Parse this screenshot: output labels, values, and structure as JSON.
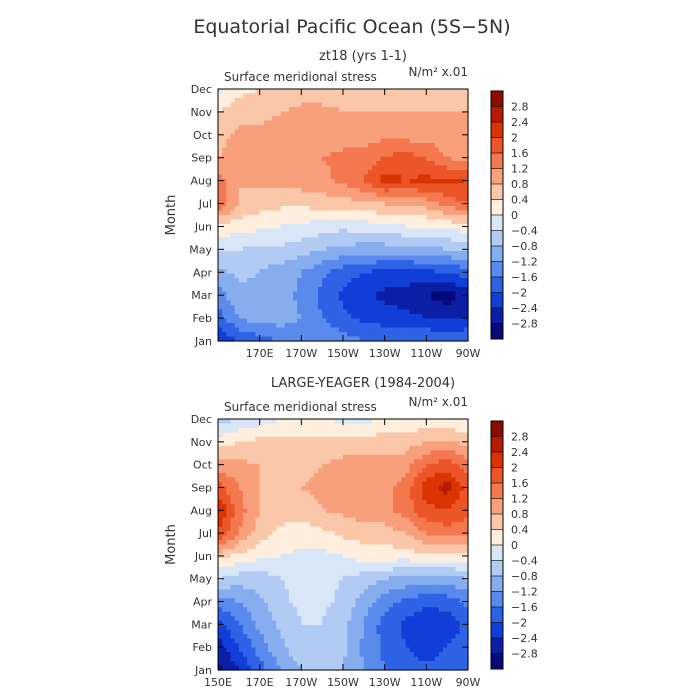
{
  "figure": {
    "title": "Equatorial Pacific Ocean (5S−5N)"
  },
  "colorbar": {
    "labels": [
      "2.8",
      "2.4",
      "2",
      "1.6",
      "1.2",
      "0.8",
      "0.4",
      "0",
      "−0.4",
      "−0.8",
      "−1.2",
      "−1.6",
      "−2",
      "−2.4",
      "−2.8"
    ],
    "colors": [
      "#8c0d00",
      "#b81a00",
      "#da3500",
      "#ec5528",
      "#f4784f",
      "#f8a07c",
      "#fbc7a9",
      "#fdeedd",
      "#d8e6f7",
      "#b1cbf2",
      "#86aeef",
      "#5a8bec",
      "#2f63e6",
      "#123ed8",
      "#0a1ea6",
      "#050a78"
    ]
  },
  "chart_data": [
    {
      "type": "heatmap",
      "title": "zt18 (yrs 1-1)",
      "subtitle": "Surface meridional stress",
      "units": "N/m² x.01",
      "xlabel": "",
      "ylabel": "Month",
      "x_ticks": [
        "170E",
        "170W",
        "150W",
        "130W",
        "110W",
        "90W"
      ],
      "y_ticks": [
        "Jan",
        "Feb",
        "Mar",
        "Apr",
        "May",
        "Jun",
        "Jul",
        "Aug",
        "Sep",
        "Oct",
        "Nov",
        "Dec"
      ],
      "x_range": [
        150,
        270
      ],
      "x_units": "degrees east",
      "levels": [
        -2.8,
        -2.4,
        -2,
        -1.6,
        -1.2,
        -0.8,
        -0.4,
        0,
        0.4,
        0.8,
        1.2,
        1.6,
        2,
        2.4,
        2.8
      ],
      "lon": [
        150,
        160,
        170,
        180,
        190,
        200,
        210,
        220,
        230,
        240,
        250,
        260,
        270
      ],
      "values": [
        [
          -2.4,
          -2.0,
          -1.8,
          -1.6,
          -1.4,
          -1.3,
          -1.4,
          -1.6,
          -1.6,
          -1.6,
          -1.6,
          -1.6,
          -1.6
        ],
        [
          -1.8,
          -1.2,
          -1.0,
          -1.0,
          -1.2,
          -1.6,
          -1.9,
          -2.1,
          -2.2,
          -2.3,
          -2.4,
          -2.5,
          -2.4
        ],
        [
          -1.4,
          -0.9,
          -0.9,
          -1.0,
          -1.3,
          -1.7,
          -2.1,
          -2.3,
          -2.5,
          -2.6,
          -2.8,
          -3.0,
          -2.6
        ],
        [
          -0.9,
          -0.7,
          -0.8,
          -1.0,
          -1.2,
          -1.5,
          -1.8,
          -2.0,
          -2.1,
          -2.1,
          -2.1,
          -2.0,
          -1.8
        ],
        [
          -0.3,
          -0.4,
          -0.5,
          -0.5,
          -0.6,
          -0.8,
          -0.9,
          -1.0,
          -1.0,
          -1.0,
          -0.9,
          -0.8,
          -0.7
        ],
        [
          0.3,
          0.2,
          0.1,
          0.0,
          -0.1,
          -0.2,
          -0.3,
          -0.2,
          -0.1,
          0.0,
          0.0,
          0.1,
          0.2
        ],
        [
          1.6,
          0.8,
          0.6,
          0.5,
          0.5,
          0.6,
          0.6,
          0.7,
          0.8,
          0.9,
          1.0,
          1.4,
          1.6
        ],
        [
          1.4,
          0.8,
          0.9,
          1.0,
          1.0,
          1.1,
          1.3,
          1.6,
          2.2,
          2.0,
          2.1,
          2.1,
          2.0
        ],
        [
          0.8,
          1.1,
          1.0,
          1.0,
          1.1,
          1.2,
          1.3,
          1.4,
          1.6,
          1.8,
          1.6,
          1.2,
          1.0
        ],
        [
          0.6,
          0.9,
          0.9,
          0.9,
          1.0,
          1.0,
          1.0,
          1.0,
          1.1,
          1.0,
          1.0,
          0.9,
          0.9
        ],
        [
          0.4,
          0.6,
          0.7,
          0.8,
          0.9,
          0.9,
          0.8,
          0.8,
          0.8,
          0.8,
          0.8,
          0.8,
          0.8
        ],
        [
          -0.2,
          0.3,
          0.4,
          0.4,
          0.6,
          0.6,
          0.6,
          0.6,
          0.5,
          0.5,
          0.5,
          0.6,
          0.6
        ]
      ]
    },
    {
      "type": "heatmap",
      "title": "LARGE-YEAGER (1984-2004)",
      "subtitle": "Surface meridional stress",
      "units": "N/m² x.01",
      "xlabel": "",
      "ylabel": "Month",
      "x_ticks": [
        "150E",
        "170E",
        "170W",
        "150W",
        "130W",
        "110W",
        "90W"
      ],
      "y_ticks": [
        "Jan",
        "Feb",
        "Mar",
        "Apr",
        "May",
        "Jun",
        "Jul",
        "Aug",
        "Sep",
        "Oct",
        "Nov",
        "Dec"
      ],
      "x_range": [
        150,
        270
      ],
      "x_units": "degrees east",
      "levels": [
        -2.8,
        -2.4,
        -2,
        -1.6,
        -1.2,
        -0.8,
        -0.4,
        0,
        0.4,
        0.8,
        1.2,
        1.6,
        2,
        2.4,
        2.8
      ],
      "lon": [
        150,
        160,
        170,
        180,
        190,
        200,
        210,
        220,
        230,
        240,
        250,
        260,
        270
      ],
      "values": [
        [
          -2.9,
          -2.4,
          -1.8,
          -1.2,
          -0.8,
          -0.6,
          -0.8,
          -1.2,
          -1.6,
          -1.8,
          -1.9,
          -1.8,
          -1.6
        ],
        [
          -2.6,
          -2.0,
          -1.4,
          -0.9,
          -0.5,
          -0.4,
          -0.7,
          -1.3,
          -1.7,
          -2.0,
          -2.2,
          -2.0,
          -1.7
        ],
        [
          -2.2,
          -1.6,
          -1.1,
          -0.7,
          -0.4,
          -0.4,
          -0.7,
          -1.2,
          -1.8,
          -2.1,
          -2.3,
          -2.3,
          -1.9
        ],
        [
          -1.4,
          -1.2,
          -0.9,
          -0.5,
          -0.3,
          -0.3,
          -0.5,
          -1.0,
          -1.4,
          -1.7,
          -1.9,
          -1.8,
          -1.5
        ],
        [
          -0.4,
          -0.6,
          -0.6,
          -0.4,
          -0.3,
          -0.3,
          -0.4,
          -0.6,
          -0.8,
          -0.9,
          -1.0,
          -1.0,
          -0.8
        ],
        [
          0.6,
          0.3,
          0.1,
          0.0,
          -0.1,
          -0.1,
          0.0,
          0.2,
          0.2,
          0.2,
          0.3,
          0.3,
          0.3
        ],
        [
          2.0,
          1.2,
          0.6,
          0.3,
          0.2,
          0.3,
          0.5,
          0.6,
          0.6,
          0.8,
          1.2,
          1.4,
          1.4
        ],
        [
          2.4,
          1.4,
          0.8,
          0.6,
          0.6,
          0.8,
          0.9,
          1.0,
          1.1,
          1.4,
          1.9,
          2.0,
          1.7
        ],
        [
          1.8,
          1.2,
          0.8,
          0.7,
          0.8,
          0.9,
          0.9,
          1.0,
          1.0,
          1.4,
          2.2,
          2.6,
          1.8
        ],
        [
          0.9,
          0.9,
          0.8,
          0.7,
          0.7,
          0.8,
          0.9,
          0.9,
          0.9,
          1.0,
          1.6,
          1.8,
          1.4
        ],
        [
          0.2,
          0.4,
          0.5,
          0.5,
          0.5,
          0.5,
          0.6,
          0.6,
          0.6,
          0.6,
          0.8,
          0.8,
          0.7
        ],
        [
          -0.6,
          -0.4,
          -0.2,
          0.0,
          0.1,
          0.0,
          -0.1,
          -0.1,
          0.0,
          0.1,
          0.1,
          0.1,
          0.0
        ]
      ]
    }
  ]
}
